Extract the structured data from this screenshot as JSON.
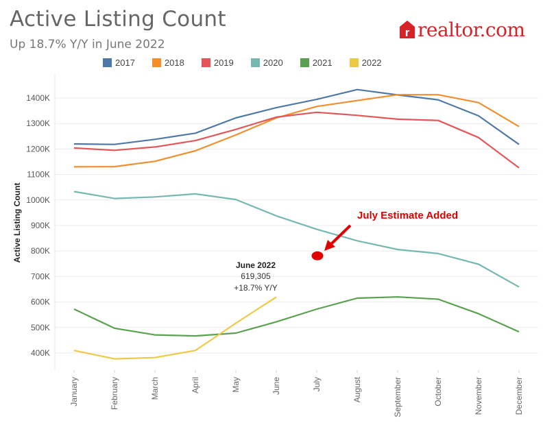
{
  "header": {
    "title": "Active Listing Count",
    "subtitle": "Up 18.7% Y/Y in June 2022"
  },
  "logo": {
    "text": "realtor.com",
    "mark_letter": "r",
    "color": "#d92228"
  },
  "chart_data": {
    "type": "line",
    "ylabel": "Active Listing Count",
    "xlabel": "",
    "ylim": [
      320000,
      1500000
    ],
    "yticks": [
      400000,
      500000,
      600000,
      700000,
      800000,
      900000,
      1000000,
      1100000,
      1200000,
      1300000,
      1400000
    ],
    "ytick_labels": [
      "400K",
      "500K",
      "600K",
      "700K",
      "800K",
      "900K",
      "1000K",
      "1100K",
      "1200K",
      "1300K",
      "1400K"
    ],
    "categories": [
      "January",
      "February",
      "March",
      "April",
      "May",
      "June",
      "July",
      "August",
      "September",
      "October",
      "November",
      "December"
    ],
    "grid": "horizontal",
    "series": [
      {
        "name": "2017",
        "color": "#4e79a7",
        "values": [
          1220000,
          1218000,
          1238000,
          1262000,
          1322000,
          1362000,
          1395000,
          1433000,
          1412000,
          1393000,
          1330000,
          1218000
        ]
      },
      {
        "name": "2018",
        "color": "#f28e2b",
        "values": [
          1130000,
          1131000,
          1152000,
          1193000,
          1255000,
          1322000,
          1367000,
          1390000,
          1413000,
          1413000,
          1382000,
          1288000
        ]
      },
      {
        "name": "2019",
        "color": "#e15759",
        "values": [
          1204000,
          1195000,
          1208000,
          1233000,
          1277000,
          1325000,
          1344000,
          1332000,
          1317000,
          1312000,
          1245000,
          1126000
        ]
      },
      {
        "name": "2020",
        "color": "#76b7b2",
        "values": [
          1033000,
          1006000,
          1012000,
          1024000,
          1002000,
          938000,
          885000,
          840000,
          806000,
          790000,
          748000,
          659000
        ]
      },
      {
        "name": "2021",
        "color": "#59a14f",
        "values": [
          572000,
          497000,
          471000,
          467000,
          478000,
          522000,
          572000,
          615000,
          620000,
          611000,
          554000,
          483000
        ]
      },
      {
        "name": "2022",
        "color": "#edc948",
        "values": [
          410000,
          377000,
          382000,
          410000,
          517000,
          619305,
          null,
          null,
          null,
          null,
          null,
          null
        ]
      }
    ],
    "annotations": {
      "june": {
        "title": "June 2022",
        "value": "619,305",
        "change": "+18.7% Y/Y"
      },
      "estimate": {
        "label": "July Estimate Added",
        "month": "July",
        "value": 781000,
        "color": "#e00000"
      }
    }
  }
}
